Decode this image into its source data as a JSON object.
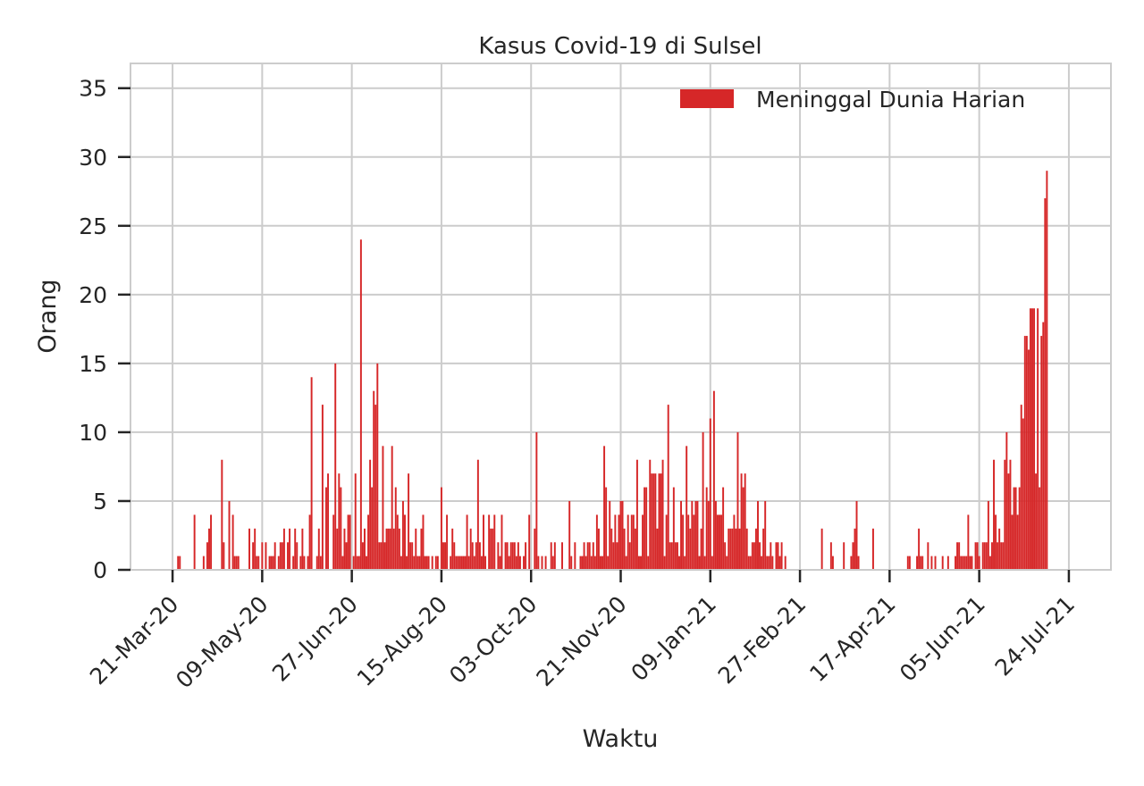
{
  "chart_data": {
    "type": "bar",
    "title": "Kasus Covid-19 di Sulsel",
    "xlabel": "Waktu",
    "ylabel": "Orang",
    "ylim": [
      0,
      36.8
    ],
    "xlim": [
      "2020-02-27",
      "2021-08-16"
    ],
    "yticks": [
      0,
      5,
      10,
      15,
      20,
      25,
      30,
      35
    ],
    "xticks": [
      {
        "date": "2020-03-21",
        "label": "21-Mar-20"
      },
      {
        "date": "2020-05-09",
        "label": "09-May-20"
      },
      {
        "date": "2020-06-27",
        "label": "27-Jun-20"
      },
      {
        "date": "2020-08-15",
        "label": "15-Aug-20"
      },
      {
        "date": "2020-10-03",
        "label": "03-Oct-20"
      },
      {
        "date": "2020-11-21",
        "label": "21-Nov-20"
      },
      {
        "date": "2021-01-09",
        "label": "09-Jan-21"
      },
      {
        "date": "2021-02-27",
        "label": "27-Feb-21"
      },
      {
        "date": "2021-04-17",
        "label": "17-Apr-21"
      },
      {
        "date": "2021-06-05",
        "label": "05-Jun-21"
      },
      {
        "date": "2021-07-24",
        "label": "24-Jul-21"
      }
    ],
    "grid": true,
    "legend": "top-right",
    "series": [
      {
        "name": "Meninggal Dunia Harian",
        "color": "#d62728",
        "start_date": "2020-03-24",
        "values": [
          1,
          1,
          0,
          0,
          0,
          0,
          0,
          0,
          0,
          4,
          0,
          0,
          0,
          0,
          1,
          0,
          2,
          3,
          4,
          0,
          0,
          0,
          0,
          0,
          8,
          2,
          0,
          0,
          5,
          0,
          4,
          1,
          1,
          1,
          0,
          0,
          0,
          0,
          0,
          3,
          0,
          2,
          3,
          1,
          1,
          0,
          2,
          0,
          2,
          0,
          1,
          1,
          1,
          2,
          0,
          1,
          2,
          2,
          3,
          0,
          2,
          3,
          0,
          1,
          3,
          2,
          0,
          1,
          3,
          1,
          0,
          1,
          4,
          14,
          0,
          0,
          1,
          3,
          1,
          12,
          0,
          6,
          7,
          0,
          0,
          4,
          15,
          3,
          7,
          6,
          1,
          3,
          2,
          4,
          4,
          0,
          1,
          7,
          1,
          1,
          24,
          2,
          3,
          1,
          4,
          8,
          6,
          13,
          12,
          15,
          2,
          2,
          9,
          2,
          3,
          3,
          3,
          9,
          3,
          6,
          4,
          3,
          1,
          5,
          4,
          1,
          7,
          2,
          2,
          1,
          3,
          1,
          1,
          3,
          4,
          1,
          1,
          1,
          0,
          1,
          0,
          1,
          1,
          0,
          6,
          2,
          2,
          4,
          0,
          1,
          3,
          2,
          1,
          1,
          1,
          1,
          1,
          1,
          4,
          1,
          3,
          2,
          1,
          2,
          8,
          2,
          1,
          4,
          1,
          0,
          4,
          3,
          3,
          4,
          0,
          2,
          1,
          4,
          0,
          2,
          2,
          1,
          2,
          2,
          2,
          1,
          2,
          1,
          0,
          1,
          2,
          0,
          4,
          0,
          0,
          3,
          10,
          1,
          0,
          1,
          0,
          1,
          0,
          0,
          2,
          1,
          2,
          0,
          0,
          0,
          2,
          0,
          0,
          0,
          5,
          1,
          0,
          2,
          0,
          0,
          1,
          1,
          2,
          1,
          2,
          2,
          1,
          2,
          1,
          4,
          3,
          1,
          1,
          9,
          6,
          1,
          5,
          3,
          2,
          4,
          2,
          4,
          5,
          5,
          3,
          1,
          4,
          2,
          4,
          4,
          3,
          8,
          1,
          1,
          4,
          6,
          6,
          1,
          8,
          7,
          7,
          7,
          3,
          7,
          7,
          8,
          1,
          4,
          12,
          2,
          2,
          6,
          2,
          2,
          1,
          5,
          4,
          1,
          9,
          4,
          3,
          5,
          4,
          5,
          5,
          1,
          3,
          10,
          1,
          6,
          5,
          11,
          1,
          13,
          5,
          4,
          4,
          4,
          6,
          2,
          1,
          3,
          3,
          3,
          4,
          3,
          10,
          3,
          7,
          6,
          7,
          3,
          1,
          1,
          2,
          2,
          3,
          5,
          2,
          1,
          3,
          5,
          1,
          1,
          2,
          1,
          0,
          2,
          2,
          1,
          2,
          0,
          1,
          0,
          0,
          0,
          0,
          0,
          0,
          0,
          0,
          0,
          0,
          0,
          0,
          0,
          0,
          0,
          0,
          0,
          0,
          0,
          3,
          0,
          0,
          0,
          0,
          2,
          1,
          0,
          0,
          0,
          0,
          0,
          2,
          0,
          0,
          0,
          1,
          2,
          3,
          5,
          1,
          0,
          0,
          0,
          0,
          0,
          0,
          0,
          3,
          0,
          0,
          0,
          0,
          0,
          0,
          0,
          0,
          0,
          0,
          0,
          0,
          0,
          0,
          0,
          0,
          0,
          0,
          1,
          1,
          0,
          0,
          0,
          1,
          3,
          1,
          1,
          0,
          0,
          2,
          0,
          1,
          0,
          1,
          0,
          0,
          0,
          1,
          0,
          0,
          1,
          0,
          0,
          0,
          1,
          2,
          2,
          1,
          1,
          1,
          1,
          4,
          1,
          1,
          0,
          2,
          2,
          1,
          0,
          2,
          2,
          2,
          5,
          1,
          2,
          8,
          4,
          2,
          3,
          2,
          2,
          8,
          10,
          7,
          8,
          4,
          6,
          6,
          4,
          6,
          12,
          11,
          17,
          17,
          16,
          19,
          19,
          19,
          7,
          19,
          6,
          17,
          18,
          27,
          29
        ]
      }
    ]
  }
}
